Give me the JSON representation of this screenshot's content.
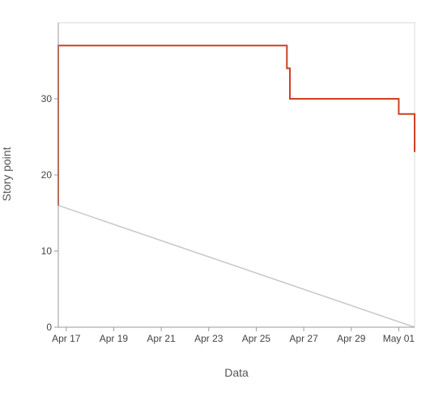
{
  "chart_data": {
    "type": "line",
    "title": "",
    "xlabel": "Data",
    "ylabel": "Story point",
    "x_tick_labels": [
      {
        "date": "2023-04-17",
        "label": "Apr 17"
      },
      {
        "date": "2023-04-19",
        "label": "Apr 19"
      },
      {
        "date": "2023-04-21",
        "label": "Apr 21"
      },
      {
        "date": "2023-04-23",
        "label": "Apr 23"
      },
      {
        "date": "2023-04-25",
        "label": "Apr 25"
      },
      {
        "date": "2023-04-27",
        "label": "Apr 27"
      },
      {
        "date": "2023-04-29",
        "label": "Apr 29"
      },
      {
        "date": "2023-05-01",
        "label": "May 01"
      }
    ],
    "y_ticks": [
      0,
      10,
      20,
      30
    ],
    "xlim": [
      "2023-04-16T16:00",
      "2023-05-01T16:00"
    ],
    "ylim": [
      0,
      40
    ],
    "grid": false,
    "series": [
      {
        "color": "#d13f22",
        "step": true,
        "points": [
          {
            "x": "2023-04-16T16:00",
            "y": 16
          },
          {
            "x": "2023-04-16T16:00",
            "y": 37
          },
          {
            "x": "2023-04-26T07:00",
            "y": 37
          },
          {
            "x": "2023-04-26T07:00",
            "y": 34
          },
          {
            "x": "2023-04-26T10:00",
            "y": 34
          },
          {
            "x": "2023-04-26T10:00",
            "y": 30
          },
          {
            "x": "2023-05-01T00:00",
            "y": 30
          },
          {
            "x": "2023-05-01T00:00",
            "y": 28
          },
          {
            "x": "2023-05-01T16:00",
            "y": 28
          },
          {
            "x": "2023-05-01T16:00",
            "y": 23
          }
        ]
      },
      {
        "color": "#c8c8c8",
        "step": false,
        "points": [
          {
            "x": "2023-04-16T16:00",
            "y": 16
          },
          {
            "x": "2023-05-01T16:00",
            "y": 0
          }
        ]
      }
    ]
  }
}
